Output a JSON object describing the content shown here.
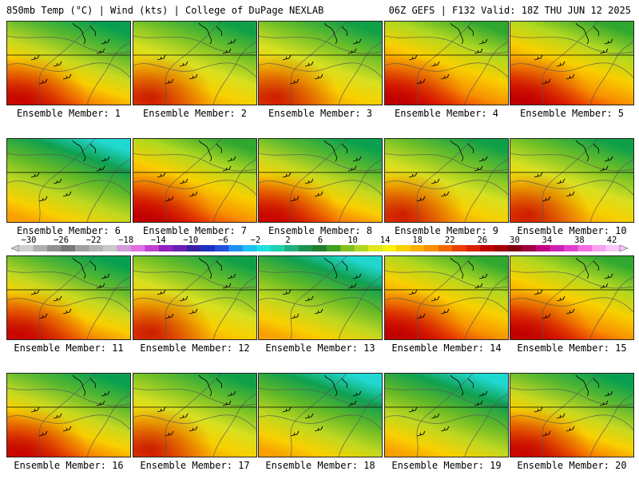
{
  "header": {
    "title_left": "850mb Temp (°C) | Wind (kts) | College of DuPage NEXLAB",
    "title_right": "06Z GEFS | F132 Valid: 18Z THU JUN 12 2025"
  },
  "colorbar": {
    "tick_labels": [
      "−30",
      "−26",
      "−22",
      "−18",
      "−14",
      "−10",
      "−6",
      "−2",
      "2",
      "6",
      "10",
      "14",
      "18",
      "22",
      "26",
      "30",
      "34",
      "38",
      "42"
    ],
    "colors": [
      "#d0d0d0",
      "#b0b0b0",
      "#909090",
      "#787878",
      "#a0a0a0",
      "#b4b4b4",
      "#c8c8c8",
      "#d09cd8",
      "#e070e0",
      "#c040d0",
      "#9020c0",
      "#6a20b0",
      "#3a20a8",
      "#2030c0",
      "#2050e0",
      "#2090f0",
      "#20c0f0",
      "#20e0e0",
      "#20d0b0",
      "#20b080",
      "#209050",
      "#208030",
      "#40a020",
      "#80c020",
      "#b0d820",
      "#e0e820",
      "#f8f010",
      "#f8d000",
      "#f8b000",
      "#f89000",
      "#f06800",
      "#e84000",
      "#d82000",
      "#c00000",
      "#a00000",
      "#800010",
      "#a00040",
      "#c00080",
      "#d020b0",
      "#e040d0",
      "#f070e0",
      "#f8a0f0",
      "#f8c8f8"
    ]
  },
  "members": [
    {
      "label": "Ensemble Member: 1",
      "style": "warm-sw"
    },
    {
      "label": "Ensemble Member: 2",
      "style": "mild"
    },
    {
      "label": "Ensemble Member: 3",
      "style": "mild"
    },
    {
      "label": "Ensemble Member: 4",
      "style": "hot"
    },
    {
      "label": "Ensemble Member: 5",
      "style": "hot"
    },
    {
      "label": "Ensemble Member: 6",
      "style": "cool"
    },
    {
      "label": "Ensemble Member: 7",
      "style": "hot"
    },
    {
      "label": "Ensemble Member: 8",
      "style": "warm-sw"
    },
    {
      "label": "Ensemble Member: 9",
      "style": "mild"
    },
    {
      "label": "Ensemble Member: 10",
      "style": "mild"
    },
    {
      "label": "Ensemble Member: 11",
      "style": "warm-sw"
    },
    {
      "label": "Ensemble Member: 12",
      "style": "mild"
    },
    {
      "label": "Ensemble Member: 13",
      "style": "cool"
    },
    {
      "label": "Ensemble Member: 14",
      "style": "hot"
    },
    {
      "label": "Ensemble Member: 15",
      "style": "hot"
    },
    {
      "label": "Ensemble Member: 16",
      "style": "warm-sw"
    },
    {
      "label": "Ensemble Member: 17",
      "style": "mild"
    },
    {
      "label": "Ensemble Member: 18",
      "style": "cool"
    },
    {
      "label": "Ensemble Member: 19",
      "style": "cool"
    },
    {
      "label": "Ensemble Member: 20",
      "style": "warm-sw"
    }
  ]
}
